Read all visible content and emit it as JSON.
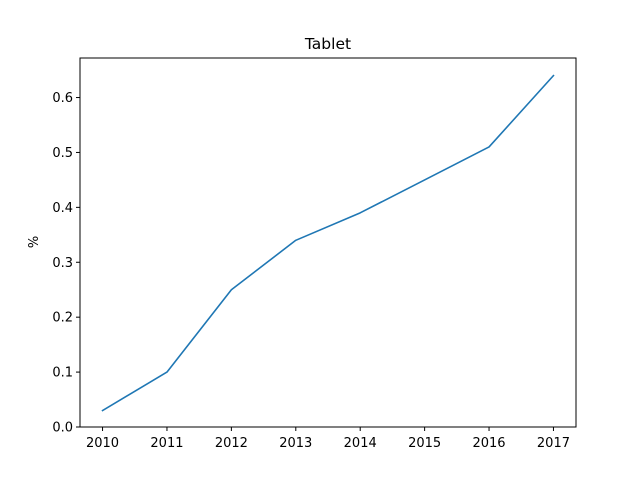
{
  "chart_data": {
    "type": "line",
    "title": "Tablet",
    "xlabel": "",
    "ylabel": "%",
    "x": [
      2010,
      2011,
      2012,
      2013,
      2014,
      2015,
      2016,
      2017
    ],
    "series": [
      {
        "values": [
          0.03,
          0.1,
          0.25,
          0.34,
          0.39,
          0.45,
          0.51,
          0.64
        ],
        "color": "#1f77b4"
      }
    ],
    "xticks": [
      "2010",
      "2011",
      "2012",
      "2013",
      "2014",
      "2015",
      "2016",
      "2017"
    ],
    "yticks": [
      "0.0",
      "0.1",
      "0.2",
      "0.3",
      "0.4",
      "0.5",
      "0.6"
    ],
    "xlim": [
      2009.65,
      2017.35
    ],
    "ylim": [
      0.0,
      0.672
    ],
    "grid": false,
    "legend": "none"
  }
}
